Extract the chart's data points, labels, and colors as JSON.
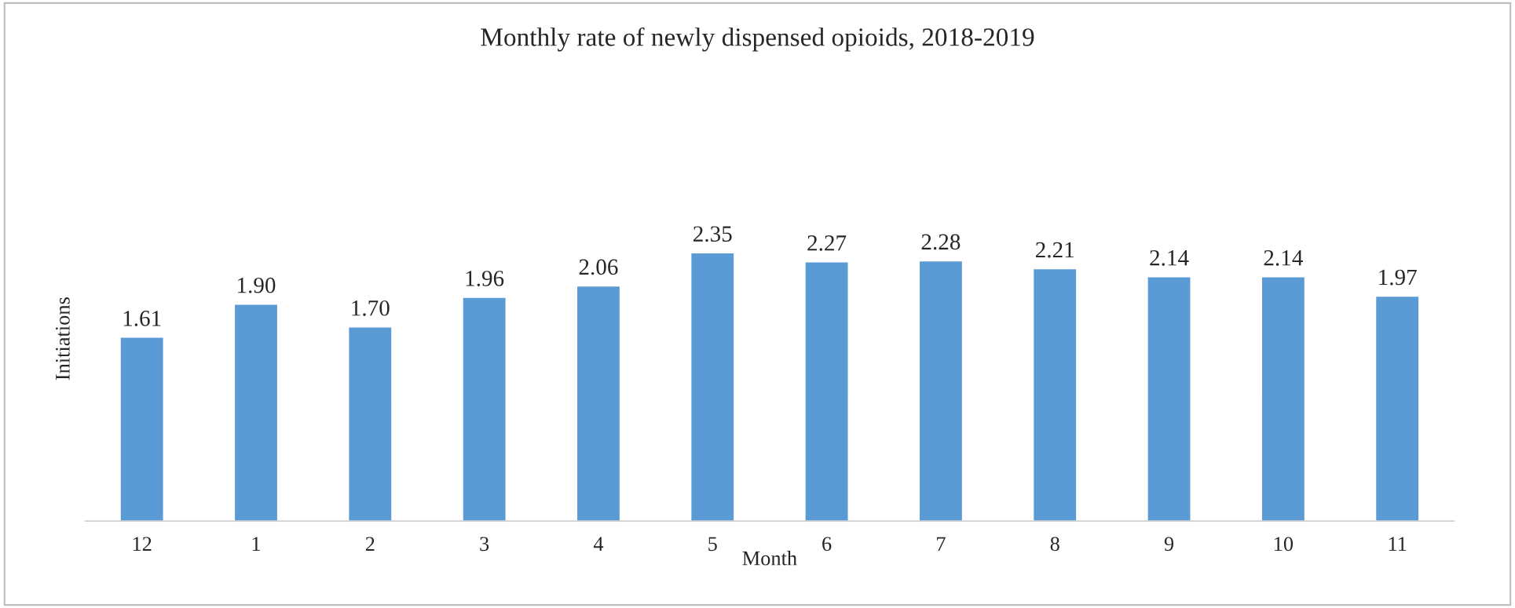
{
  "chart_data": {
    "type": "bar",
    "title": "Monthly rate of newly dispensed opioids, 2018-2019",
    "xlabel": "Month",
    "ylabel": "Initiations",
    "categories": [
      "12",
      "1",
      "2",
      "3",
      "4",
      "5",
      "6",
      "7",
      "8",
      "9",
      "10",
      "11"
    ],
    "values": [
      1.61,
      1.9,
      1.7,
      1.96,
      2.06,
      2.35,
      2.27,
      2.28,
      2.21,
      2.14,
      2.14,
      1.97
    ],
    "value_labels": [
      "1.61",
      "1.90",
      "1.70",
      "1.96",
      "2.06",
      "2.35",
      "2.27",
      "2.28",
      "2.21",
      "2.14",
      "2.14",
      "1.97"
    ],
    "color": "#5b9bd5",
    "grid": false,
    "legend": false
  }
}
